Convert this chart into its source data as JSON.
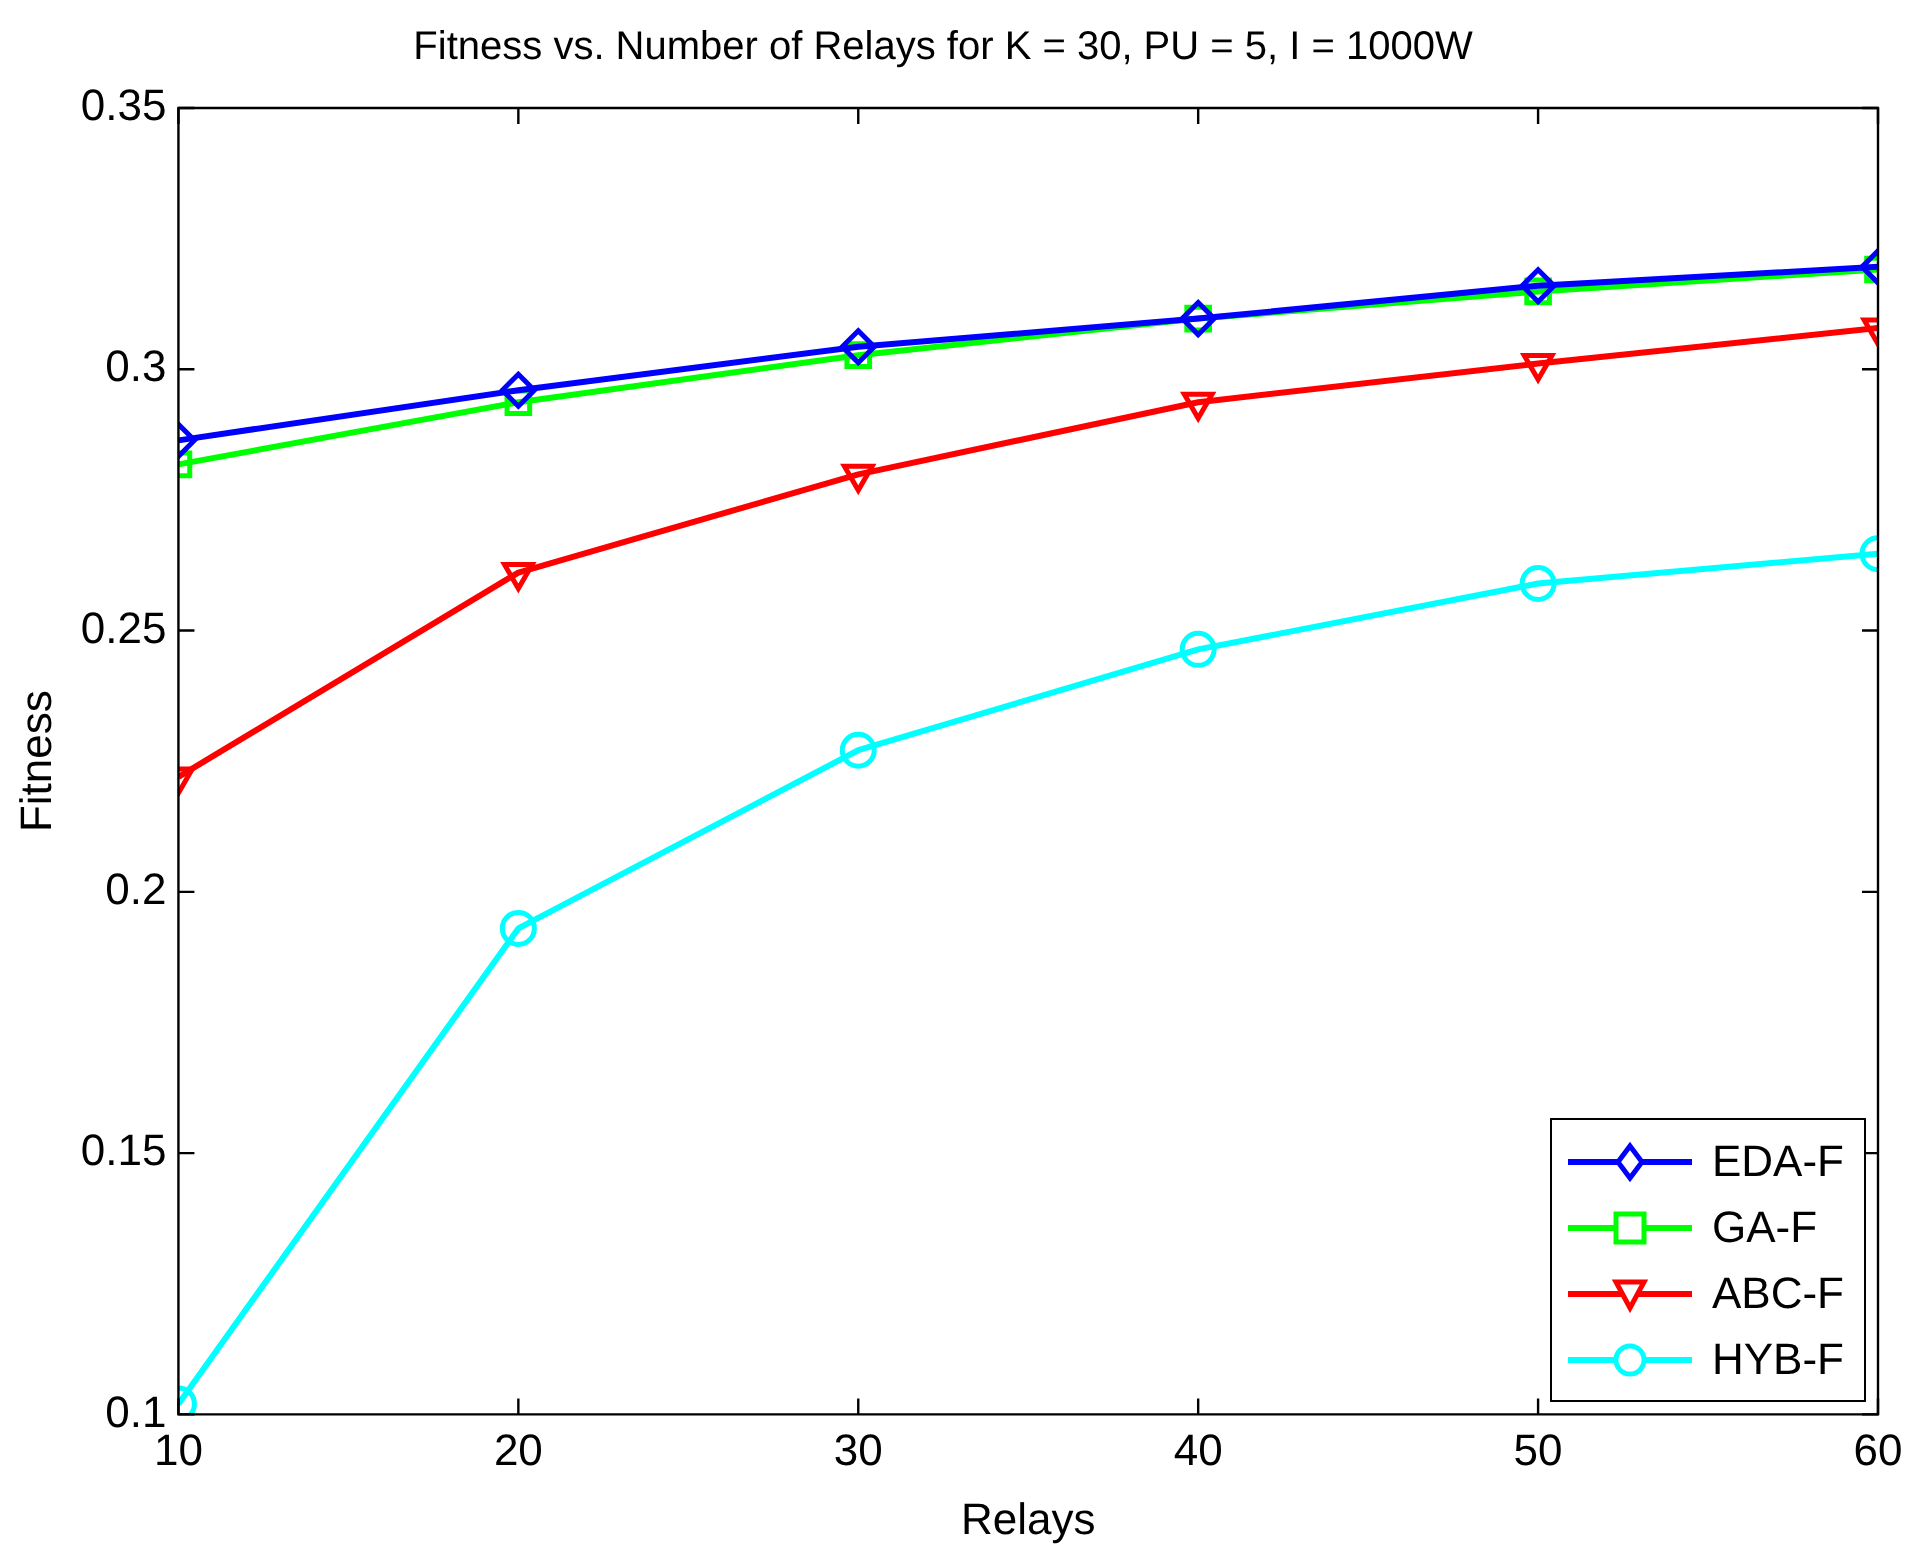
{
  "chart_data": {
    "type": "line",
    "title": "Fitness vs. Number of Relays for K = 30, PU = 5, I = 1000W",
    "xlabel": "Relays",
    "ylabel": "Fitness",
    "x": [
      10,
      20,
      30,
      40,
      50,
      60
    ],
    "series": [
      {
        "name": "EDA-F",
        "color": "#0000ff",
        "marker": "diamond",
        "values": [
          0.2864,
          0.296,
          0.3043,
          0.3097,
          0.316,
          0.3196
        ]
      },
      {
        "name": "GA-F",
        "color": "#00ff00",
        "marker": "square",
        "values": [
          0.2818,
          0.2937,
          0.3027,
          0.3097,
          0.3149,
          0.3191
        ]
      },
      {
        "name": "ABC-F",
        "color": "#ff0000",
        "marker": "triangle",
        "values": [
          0.222,
          0.2611,
          0.2799,
          0.2937,
          0.3011,
          0.3079
        ]
      },
      {
        "name": "HYB-F",
        "color": "#00ffff",
        "marker": "circle",
        "values": [
          0.102,
          0.193,
          0.2271,
          0.2464,
          0.259,
          0.2647
        ]
      }
    ],
    "xlim": [
      10,
      60
    ],
    "xticks": [
      10,
      20,
      30,
      40,
      50,
      60
    ],
    "ylim": [
      0.1,
      0.35
    ],
    "yticks": [
      0.1,
      0.15,
      0.2,
      0.25,
      0.3,
      0.35
    ],
    "grid": false,
    "legend": "bottom right",
    "line_style": "solid"
  }
}
